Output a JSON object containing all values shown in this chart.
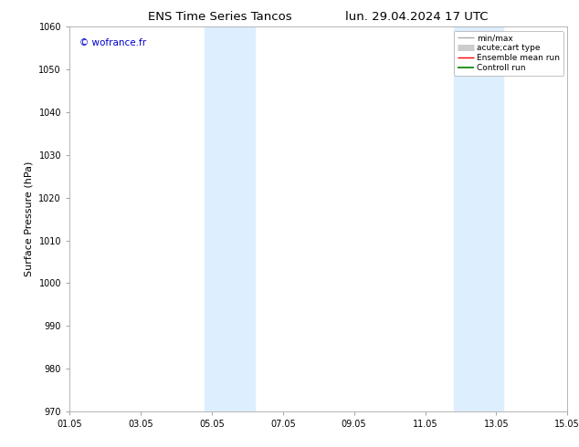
{
  "title_left": "ENS Time Series Tancos",
  "title_right": "lun. 29.04.2024 17 UTC",
  "ylabel": "Surface Pressure (hPa)",
  "ylim": [
    970,
    1060
  ],
  "yticks": [
    970,
    980,
    990,
    1000,
    1010,
    1020,
    1030,
    1040,
    1050,
    1060
  ],
  "xlim_start": 0.0,
  "xlim_end": 14.0,
  "xtick_positions": [
    0,
    2,
    4,
    6,
    8,
    10,
    12,
    14
  ],
  "xtick_labels": [
    "01.05",
    "03.05",
    "05.05",
    "07.05",
    "09.05",
    "11.05",
    "13.05",
    "15.05"
  ],
  "shaded_bands": [
    {
      "xmin": 3.8,
      "xmax": 5.2
    },
    {
      "xmin": 10.8,
      "xmax": 12.2
    }
  ],
  "shade_color": "#ddeeff",
  "watermark_text": "© wofrance.fr",
  "watermark_color": "#0000cc",
  "background_color": "#ffffff",
  "spine_color": "#aaaaaa",
  "tick_color": "#333333",
  "legend_entries": [
    {
      "label": "min/max",
      "color": "#aaaaaa",
      "lw": 1.0,
      "linestyle": "-"
    },
    {
      "label": "acute;cart type",
      "color": "#cccccc",
      "lw": 5,
      "linestyle": "-"
    },
    {
      "label": "Ensemble mean run",
      "color": "red",
      "lw": 1.0,
      "linestyle": "-"
    },
    {
      "label": "Controll run",
      "color": "green",
      "lw": 1.2,
      "linestyle": "-"
    }
  ],
  "title_fontsize": 9.5,
  "ylabel_fontsize": 8,
  "tick_fontsize": 7,
  "legend_fontsize": 6.5,
  "watermark_fontsize": 7.5
}
